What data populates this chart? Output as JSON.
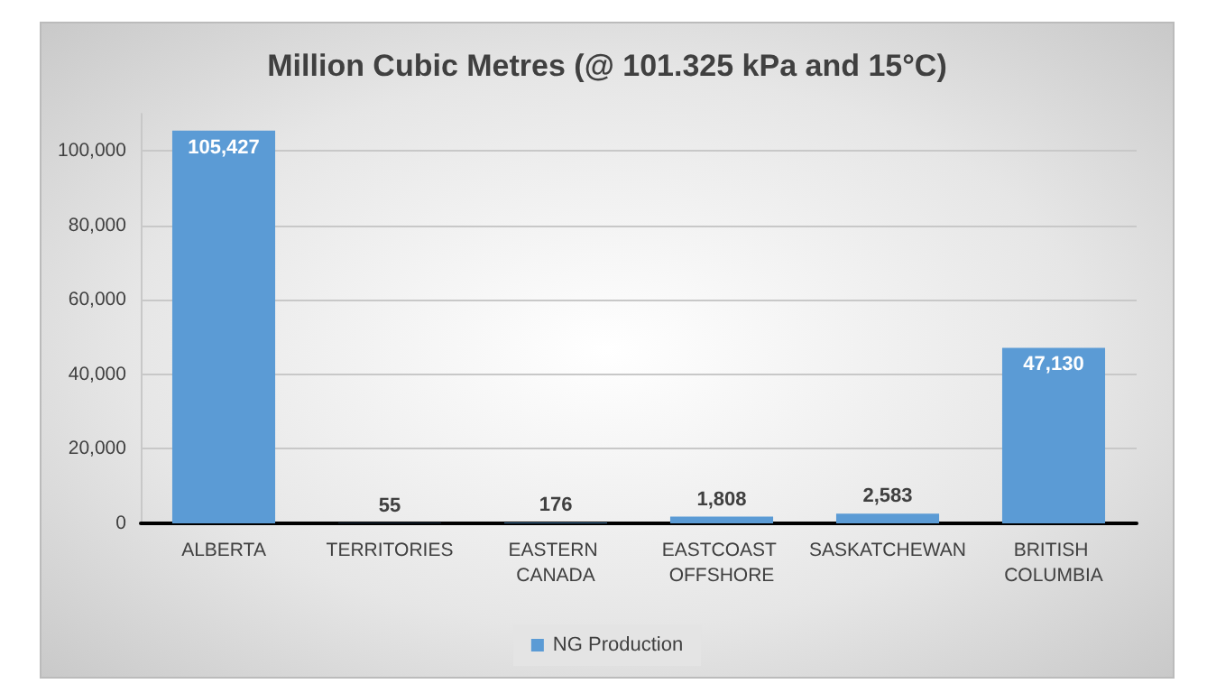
{
  "chart_data": {
    "type": "bar",
    "title": "Million Cubic Metres (@ 101.325 kPa and 15°C)",
    "categories": [
      "ALBERTA",
      "TERRITORIES",
      "EASTERN CANADA",
      "EASTCOAST OFFSHORE",
      "SASKATCHEWAN",
      "BRITISH COLUMBIA"
    ],
    "series": [
      {
        "name": "NG Production",
        "color": "#5b9bd5",
        "values": [
          105427,
          55,
          176,
          1808,
          2583,
          47130
        ],
        "value_labels": [
          "105,427",
          "55",
          "176",
          "1,808",
          "2,583",
          "47,130"
        ]
      }
    ],
    "ylim": [
      0,
      110000
    ],
    "yticks": [
      0,
      {
        "value": 20000,
        "label": "20,000"
      },
      {
        "value": 40000,
        "label": "40,000"
      },
      {
        "value": 60000,
        "label": "60,000"
      },
      {
        "value": 80000,
        "label": "80,000"
      },
      {
        "value": 100000,
        "label": "100,000"
      }
    ],
    "grid": "y",
    "legend": "bottom"
  }
}
